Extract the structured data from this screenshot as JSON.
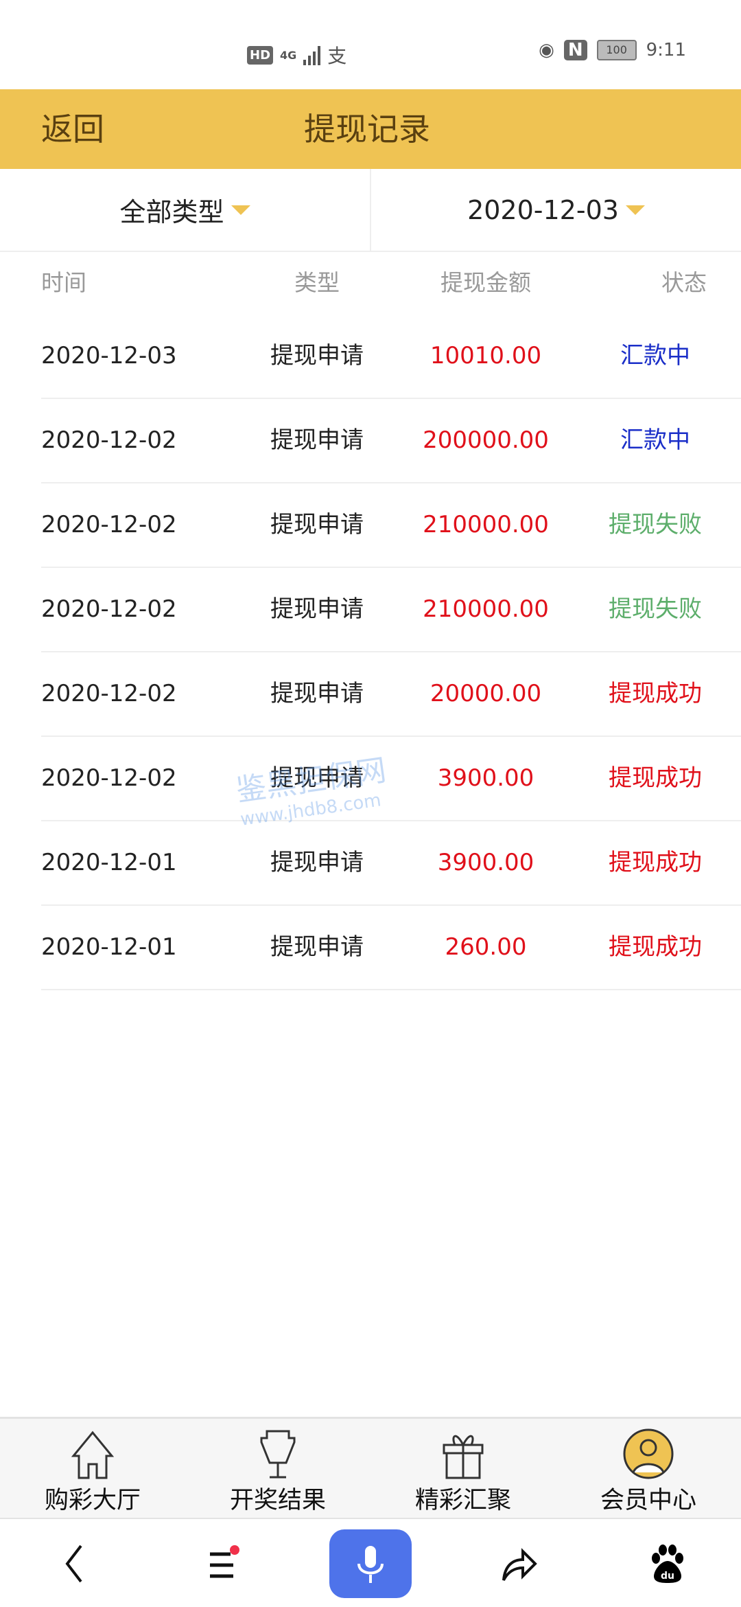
{
  "status_bar": {
    "hd": "HD",
    "network": "4G",
    "time": "9:11",
    "battery": "100"
  },
  "header": {
    "back_label": "返回",
    "title": "提现记录"
  },
  "filters": {
    "type": "全部类型",
    "date": "2020-12-03"
  },
  "columns": [
    "时间",
    "类型",
    "提现金额",
    "状态"
  ],
  "colors": {
    "accent": "#EFC353",
    "amount": "#E0101A",
    "processing": "#1A2EC8",
    "failed": "#5DAE6B",
    "success": "#E0101A"
  },
  "records": [
    {
      "date": "2020-12-03",
      "type": "提现申请",
      "amount": "10010.00",
      "status": "汇款中",
      "status_kind": "processing"
    },
    {
      "date": "2020-12-02",
      "type": "提现申请",
      "amount": "200000.00",
      "status": "汇款中",
      "status_kind": "processing"
    },
    {
      "date": "2020-12-02",
      "type": "提现申请",
      "amount": "210000.00",
      "status": "提现失败",
      "status_kind": "failed"
    },
    {
      "date": "2020-12-02",
      "type": "提现申请",
      "amount": "210000.00",
      "status": "提现失败",
      "status_kind": "failed"
    },
    {
      "date": "2020-12-02",
      "type": "提现申请",
      "amount": "20000.00",
      "status": "提现成功",
      "status_kind": "success"
    },
    {
      "date": "2020-12-02",
      "type": "提现申请",
      "amount": "3900.00",
      "status": "提现成功",
      "status_kind": "success"
    },
    {
      "date": "2020-12-01",
      "type": "提现申请",
      "amount": "3900.00",
      "status": "提现成功",
      "status_kind": "success"
    },
    {
      "date": "2020-12-01",
      "type": "提现申请",
      "amount": "260.00",
      "status": "提现成功",
      "status_kind": "success"
    }
  ],
  "watermark": {
    "name": "鉴黑担保网",
    "url": "www.jhdb8.com"
  },
  "tabbar": [
    {
      "label": "购彩大厅",
      "icon": "home-icon"
    },
    {
      "label": "开奖结果",
      "icon": "trophy-icon"
    },
    {
      "label": "精彩汇聚",
      "icon": "gift-icon"
    },
    {
      "label": "会员中心",
      "icon": "user-icon"
    }
  ],
  "browser_nav": [
    "back-icon",
    "menu-icon",
    "microphone-icon",
    "share-icon",
    "baidu-icon"
  ]
}
